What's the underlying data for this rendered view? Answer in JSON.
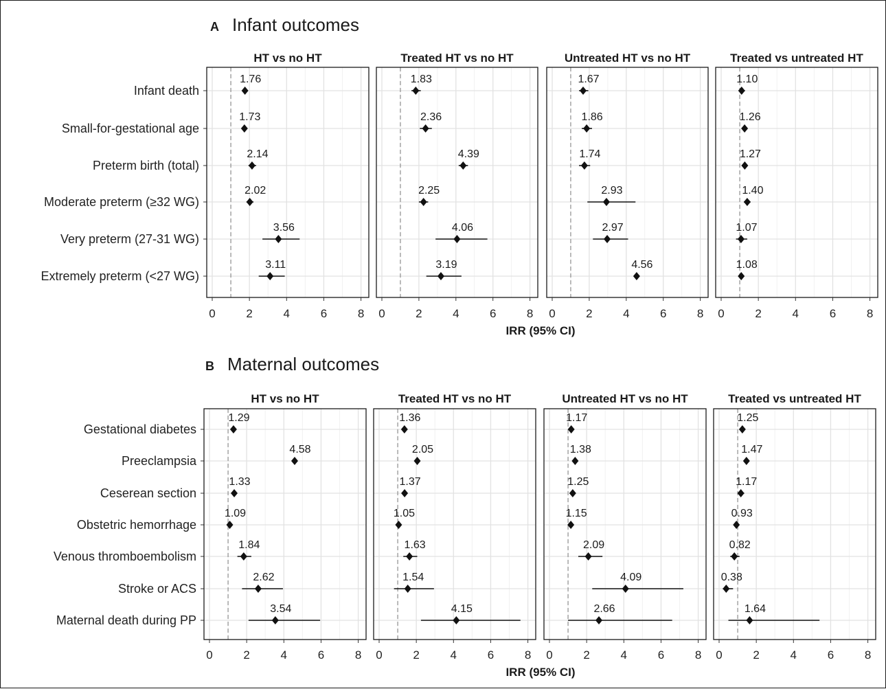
{
  "chart_data": [
    {
      "type": "forest",
      "letter": "A",
      "title": "Infant outcomes",
      "xlabel": "IRR (95% CI)",
      "xlim": [
        0,
        8.2
      ],
      "xticks": [
        0,
        2,
        4,
        6,
        8
      ],
      "reference_line": 1,
      "outcomes": [
        "Infant death",
        "Small-for-gestational age",
        "Preterm birth (total)",
        "Moderate preterm (≥32 WG)",
        "Very preterm (27-31 WG)",
        "Extremely preterm (<27 WG)"
      ],
      "panels": [
        {
          "name": "HT vs no HT",
          "points": [
            {
              "irr": 1.76,
              "lo": 1.62,
              "hi": 1.92,
              "label": "1.76"
            },
            {
              "irr": 1.73,
              "lo": 1.62,
              "hi": 1.85,
              "label": "1.73"
            },
            {
              "irr": 2.14,
              "lo": 1.95,
              "hi": 2.36,
              "label": "2.14"
            },
            {
              "irr": 2.02,
              "lo": 1.84,
              "hi": 2.22,
              "label": "2.02"
            },
            {
              "irr": 3.56,
              "lo": 2.7,
              "hi": 4.7,
              "label": "3.56"
            },
            {
              "irr": 3.11,
              "lo": 2.5,
              "hi": 3.9,
              "label": "3.11"
            }
          ]
        },
        {
          "name": "Treated HT vs no HT",
          "points": [
            {
              "irr": 1.83,
              "lo": 1.6,
              "hi": 2.1,
              "label": "1.83"
            },
            {
              "irr": 2.36,
              "lo": 2.05,
              "hi": 2.7,
              "label": "2.36"
            },
            {
              "irr": 4.39,
              "lo": 4.15,
              "hi": 4.65,
              "label": "4.39"
            },
            {
              "irr": 2.25,
              "lo": 2.0,
              "hi": 2.5,
              "label": "2.25"
            },
            {
              "irr": 4.06,
              "lo": 2.9,
              "hi": 5.7,
              "label": "4.06"
            },
            {
              "irr": 3.19,
              "lo": 2.4,
              "hi": 4.3,
              "label": "3.19"
            }
          ]
        },
        {
          "name": "Untreated HT vs no HT",
          "points": [
            {
              "irr": 1.67,
              "lo": 1.45,
              "hi": 1.95,
              "label": "1.67"
            },
            {
              "irr": 1.86,
              "lo": 1.6,
              "hi": 2.15,
              "label": "1.86"
            },
            {
              "irr": 1.74,
              "lo": 1.45,
              "hi": 2.05,
              "label": "1.74"
            },
            {
              "irr": 2.93,
              "lo": 1.9,
              "hi": 4.5,
              "label": "2.93"
            },
            {
              "irr": 2.97,
              "lo": 2.2,
              "hi": 4.1,
              "label": "2.97"
            },
            {
              "irr": 4.56,
              "lo": 4.45,
              "hi": 4.7,
              "label": "4.56"
            }
          ]
        },
        {
          "name": "Treated vs untreated HT",
          "points": [
            {
              "irr": 1.1,
              "lo": 0.95,
              "hi": 1.28,
              "label": "1.10"
            },
            {
              "irr": 1.26,
              "lo": 1.12,
              "hi": 1.4,
              "label": "1.26"
            },
            {
              "irr": 1.27,
              "lo": 1.12,
              "hi": 1.42,
              "label": "1.27"
            },
            {
              "irr": 1.4,
              "lo": 1.22,
              "hi": 1.58,
              "label": "1.40"
            },
            {
              "irr": 1.07,
              "lo": 0.8,
              "hi": 1.4,
              "label": "1.07"
            },
            {
              "irr": 1.08,
              "lo": 0.95,
              "hi": 1.22,
              "label": "1.08"
            }
          ]
        }
      ]
    },
    {
      "type": "forest",
      "letter": "B",
      "title": "Maternal outcomes",
      "xlabel": "IRR (95% CI)",
      "xlim": [
        0,
        8.2
      ],
      "xticks": [
        0,
        2,
        4,
        6,
        8
      ],
      "reference_line": 1,
      "outcomes": [
        "Gestational diabetes",
        "Preeclampsia",
        "Ceserean section",
        "Obstetric hemorrhage",
        "Venous thromboembolism",
        "Stroke or ACS",
        "Maternal death during PP"
      ],
      "panels": [
        {
          "name": "HT vs no HT",
          "points": [
            {
              "irr": 1.29,
              "lo": 1.2,
              "hi": 1.38,
              "label": "1.29"
            },
            {
              "irr": 4.58,
              "lo": 4.45,
              "hi": 4.72,
              "label": "4.58"
            },
            {
              "irr": 1.33,
              "lo": 1.25,
              "hi": 1.42,
              "label": "1.33"
            },
            {
              "irr": 1.09,
              "lo": 1.02,
              "hi": 1.17,
              "label": "1.09"
            },
            {
              "irr": 1.84,
              "lo": 1.5,
              "hi": 2.25,
              "label": "1.84"
            },
            {
              "irr": 2.62,
              "lo": 1.75,
              "hi": 3.95,
              "label": "2.62"
            },
            {
              "irr": 3.54,
              "lo": 2.1,
              "hi": 5.95,
              "label": "3.54"
            }
          ]
        },
        {
          "name": "Treated HT vs no HT",
          "points": [
            {
              "irr": 1.36,
              "lo": 1.25,
              "hi": 1.48,
              "label": "1.36"
            },
            {
              "irr": 2.05,
              "lo": 1.95,
              "hi": 2.16,
              "label": "2.05"
            },
            {
              "irr": 1.37,
              "lo": 1.28,
              "hi": 1.47,
              "label": "1.37"
            },
            {
              "irr": 1.05,
              "lo": 0.97,
              "hi": 1.14,
              "label": "1.05"
            },
            {
              "irr": 1.63,
              "lo": 1.3,
              "hi": 2.05,
              "label": "1.63"
            },
            {
              "irr": 1.54,
              "lo": 0.8,
              "hi": 2.95,
              "label": "1.54"
            },
            {
              "irr": 4.15,
              "lo": 2.25,
              "hi": 7.6,
              "label": "4.15"
            }
          ]
        },
        {
          "name": "Untreated HT vs no HT",
          "points": [
            {
              "irr": 1.17,
              "lo": 1.07,
              "hi": 1.28,
              "label": "1.17"
            },
            {
              "irr": 1.38,
              "lo": 1.28,
              "hi": 1.49,
              "label": "1.38"
            },
            {
              "irr": 1.25,
              "lo": 1.15,
              "hi": 1.36,
              "label": "1.25"
            },
            {
              "irr": 1.15,
              "lo": 1.05,
              "hi": 1.26,
              "label": "1.15"
            },
            {
              "irr": 2.09,
              "lo": 1.55,
              "hi": 2.85,
              "label": "2.09"
            },
            {
              "irr": 4.09,
              "lo": 2.3,
              "hi": 7.2,
              "label": "4.09"
            },
            {
              "irr": 2.66,
              "lo": 1.0,
              "hi": 6.6,
              "label": "2.66"
            }
          ]
        },
        {
          "name": "Treated vs untreated HT",
          "points": [
            {
              "irr": 1.25,
              "lo": 1.13,
              "hi": 1.38,
              "label": "1.25"
            },
            {
              "irr": 1.47,
              "lo": 1.35,
              "hi": 1.6,
              "label": "1.47"
            },
            {
              "irr": 1.17,
              "lo": 1.0,
              "hi": 1.35,
              "label": "1.17"
            },
            {
              "irr": 0.93,
              "lo": 0.85,
              "hi": 1.03,
              "label": "0.93"
            },
            {
              "irr": 0.82,
              "lo": 0.6,
              "hi": 1.1,
              "label": "0.82"
            },
            {
              "irr": 0.38,
              "lo": 0.2,
              "hi": 0.75,
              "label": "0.38"
            },
            {
              "irr": 1.64,
              "lo": 0.5,
              "hi": 5.4,
              "label": "1.64"
            }
          ]
        }
      ]
    }
  ]
}
